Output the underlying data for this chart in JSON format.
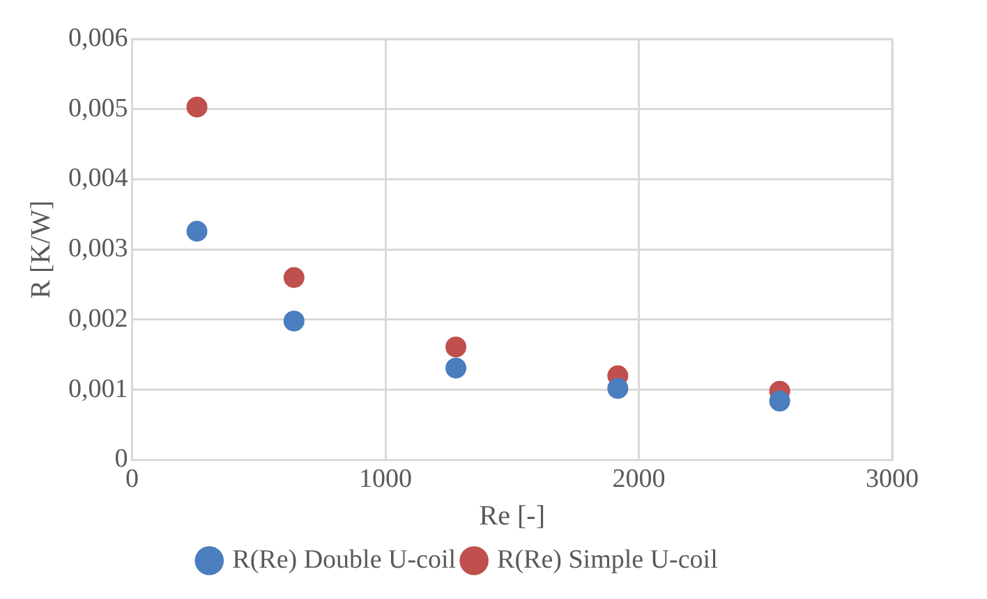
{
  "chart_data": {
    "type": "scatter",
    "xlabel": "Re [-]",
    "ylabel": "R [K/W]",
    "x": [
      256,
      639,
      1278,
      1917,
      2556
    ],
    "series": [
      {
        "name": "R(Re) Double U-coil",
        "color": "#4a7ebf",
        "values": [
          0.00326,
          0.00198,
          0.00131,
          0.00102,
          0.00084
        ]
      },
      {
        "name": "R(Re) Simple U-coil",
        "color": "#c0504d",
        "values": [
          0.00503,
          0.0026,
          0.00161,
          0.0012,
          0.00098
        ]
      }
    ],
    "xlim": [
      0,
      3000
    ],
    "xticks": [
      0,
      1000,
      2000,
      3000
    ],
    "ylim": [
      0,
      0.006
    ],
    "yticks": [
      0,
      {
        "value": 0.001,
        "label": "0,001"
      },
      {
        "value": 0.002,
        "label": "0,002"
      },
      {
        "value": 0.003,
        "label": "0,003"
      },
      {
        "value": 0.004,
        "label": "0,004"
      },
      {
        "value": 0.005,
        "label": "0,005"
      },
      {
        "value": 0.006,
        "label": "0,006"
      }
    ],
    "grid": true,
    "legend": "bottom",
    "marker": "circle"
  }
}
